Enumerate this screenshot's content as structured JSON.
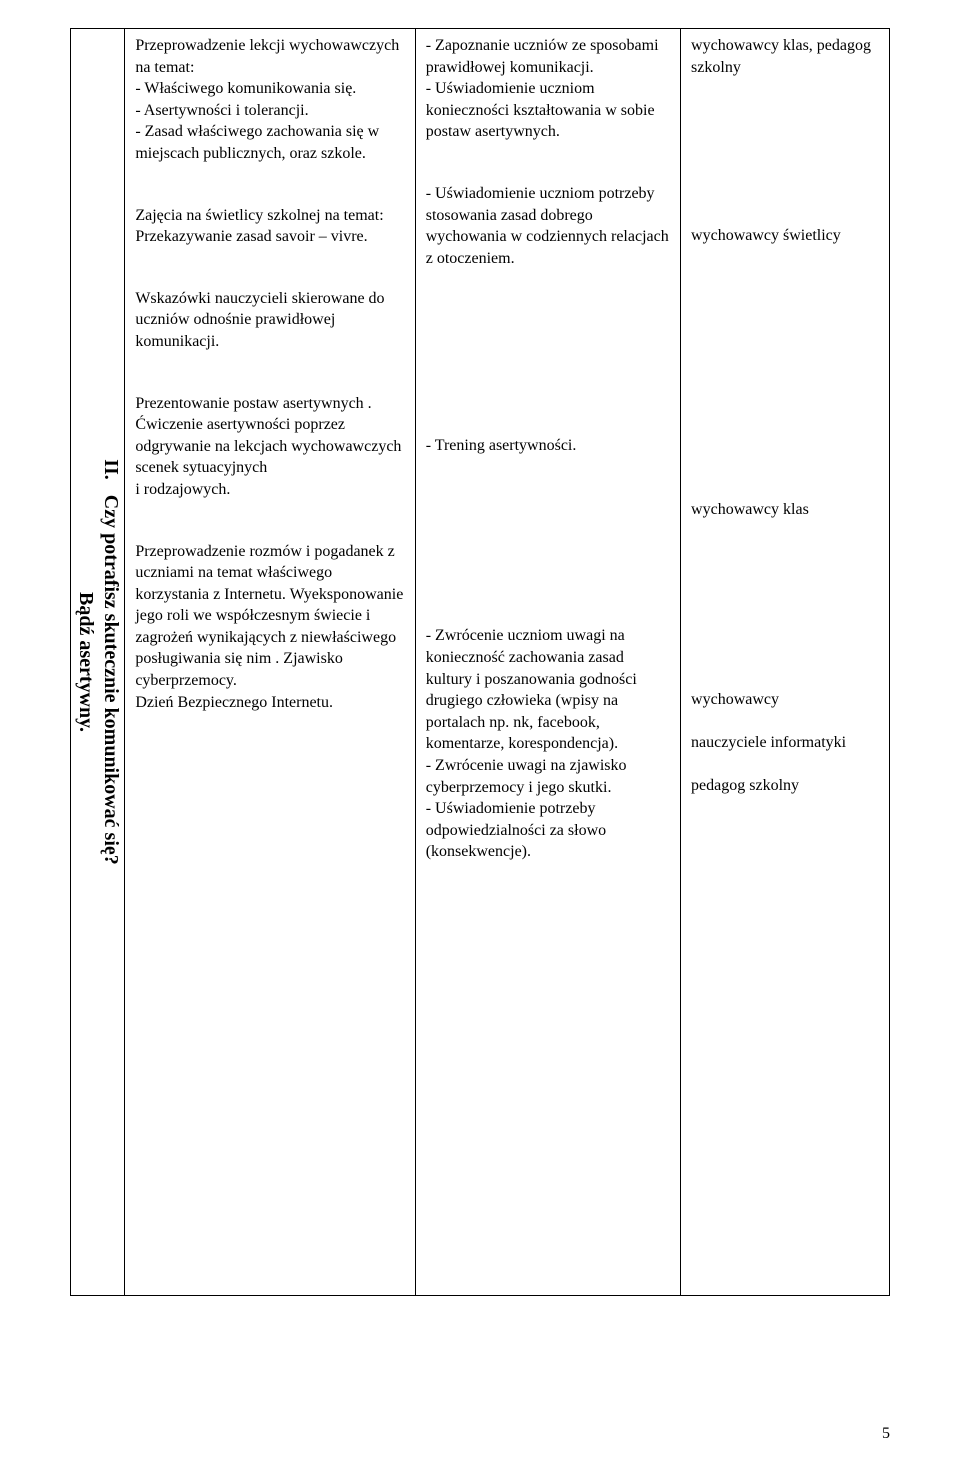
{
  "page_number": "5",
  "sidebar": {
    "roman": "II.",
    "line1": "Czy potrafisz skutecznie komunikować się?",
    "line2": "Bądź asertywny."
  },
  "rows": [
    {
      "col2": "Przeprowadzenie lekcji wychowawczych na temat:\n- Właściwego komunikowania się.\n-  Asertywności i tolerancji.\n- Zasad właściwego zachowania się w miejscach publicznych, oraz szkole.",
      "col3": "- Zapoznanie uczniów ze sposobami prawidłowej komunikacji.\n- Uświadomienie uczniom konieczności kształtowania w sobie postaw asertywnych.",
      "col4": "wychowawcy klas, pedagog szkolny"
    },
    {
      "col2": "Zajęcia na świetlicy szkolnej na temat: Przekazywanie zasad savoir – vivre.",
      "col3": "- Uświadomienie uczniom potrzeby stosowania zasad dobrego wychowania w codziennych relacjach z otoczeniem.",
      "col4": "wychowawcy świetlicy"
    },
    {
      "col2": "Wskazówki nauczycieli skierowane do uczniów odnośnie prawidłowej komunikacji.",
      "col3": "",
      "col4": ""
    },
    {
      "col2": "Prezentowanie postaw asertywnych .\nĆwiczenie asertywności poprzez odgrywanie na lekcjach wychowawczych scenek sytuacyjnych\ni rodzajowych.",
      "col3": "- Trening asertywności.",
      "col4": "wychowawcy klas"
    },
    {
      "col2": "Przeprowadzenie rozmów i pogadanek  z uczniami na temat właściwego korzystania z Internetu. Wyeksponowanie jego roli we współczesnym świecie i zagrożeń wynikających z niewłaściwego posługiwania się nim . Zjawisko cyberprzemocy.\nDzień Bezpiecznego Internetu.",
      "col3": "- Zwrócenie uczniom uwagi na konieczność zachowania zasad kultury i poszanowania godności drugiego człowieka (wpisy na portalach np. nk, facebook, komentarze, korespondencja).\n- Zwrócenie uwagi na zjawisko cyberprzemocy i jego skutki.\n- Uświadomienie potrzeby odpowiedzialności za słowo (konsekwencje).",
      "col4": "wychowawcy\n\nnauczyciele informatyki\n\npedagog szkolny"
    }
  ]
}
